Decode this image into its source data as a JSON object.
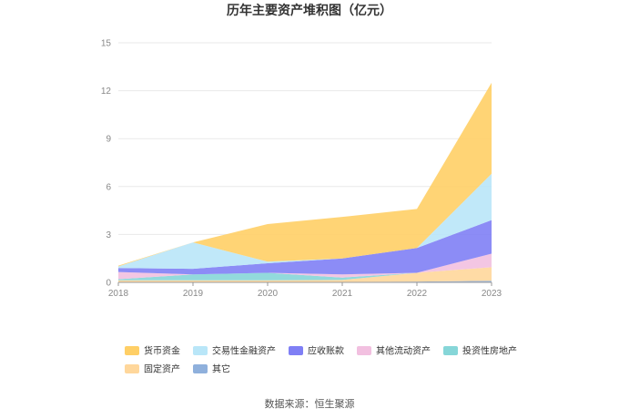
{
  "chart_data": {
    "type": "area",
    "stacked": true,
    "title": "历年主要资产堆积图（亿元）",
    "x": [
      "2018",
      "2019",
      "2020",
      "2021",
      "2022",
      "2023"
    ],
    "ylim": [
      0,
      15
    ],
    "yticks": [
      0,
      3,
      6,
      9,
      12,
      15
    ],
    "grid": true,
    "legend_position": "bottom",
    "series": [
      {
        "name": "其它",
        "color": "#8fb0dc",
        "values": [
          0.03,
          0.03,
          0.03,
          0.03,
          0.05,
          0.1
        ]
      },
      {
        "name": "固定资产",
        "color": "#ffd79b",
        "values": [
          0.1,
          0.1,
          0.1,
          0.12,
          0.55,
          0.85
        ]
      },
      {
        "name": "投资性房地产",
        "color": "#86d6d8",
        "values": [
          0.07,
          0.37,
          0.47,
          0.15,
          0.0,
          0.0
        ]
      },
      {
        "name": "其他流动资产",
        "color": "#f2c0e0",
        "values": [
          0.45,
          0.0,
          0.0,
          0.2,
          0.0,
          0.85
        ]
      },
      {
        "name": "应收账款",
        "color": "#7f7ff5",
        "values": [
          0.25,
          0.35,
          0.6,
          1.0,
          1.55,
          2.1
        ]
      },
      {
        "name": "交易性金融资产",
        "color": "#b9e6f8",
        "values": [
          0.1,
          1.65,
          0.1,
          0.0,
          0.0,
          2.9
        ]
      },
      {
        "name": "货币资金",
        "color": "#ffcf66",
        "values": [
          0.05,
          0.0,
          2.35,
          2.6,
          2.45,
          5.7
        ]
      }
    ],
    "legend_order": [
      "货币资金",
      "交易性金融资产",
      "应收账款",
      "其他流动资产",
      "投资性房地产",
      "固定资产",
      "其它"
    ]
  },
  "footer": {
    "source": "数据来源：恒生聚源"
  }
}
